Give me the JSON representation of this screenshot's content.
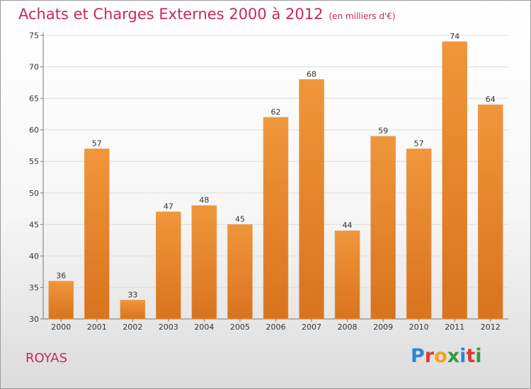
{
  "chart_data": {
    "type": "bar",
    "title": "Achats et Charges Externes 2000 à 2012",
    "subtitle": "(en milliers d'€)",
    "categories": [
      "2000",
      "2001",
      "2002",
      "2003",
      "2004",
      "2005",
      "2006",
      "2007",
      "2008",
      "2009",
      "2010",
      "2011",
      "2012"
    ],
    "values": [
      36,
      57,
      33,
      47,
      48,
      45,
      62,
      68,
      44,
      59,
      57,
      74,
      64
    ],
    "ylim": [
      30,
      75
    ],
    "yticks": [
      30,
      35,
      40,
      45,
      50,
      55,
      60,
      65,
      70,
      75
    ],
    "grid": true,
    "bar_color": "#f0963a",
    "bar_color_dark": "#d9731e"
  },
  "footer": {
    "location": "ROYAS",
    "logo_text": "Proxiti",
    "logo_colors": [
      "#2e86d6",
      "#e03a2f",
      "#f7a21b",
      "#2e9e3a",
      "#2e86d6",
      "#e03a2f",
      "#2e9e3a"
    ]
  }
}
